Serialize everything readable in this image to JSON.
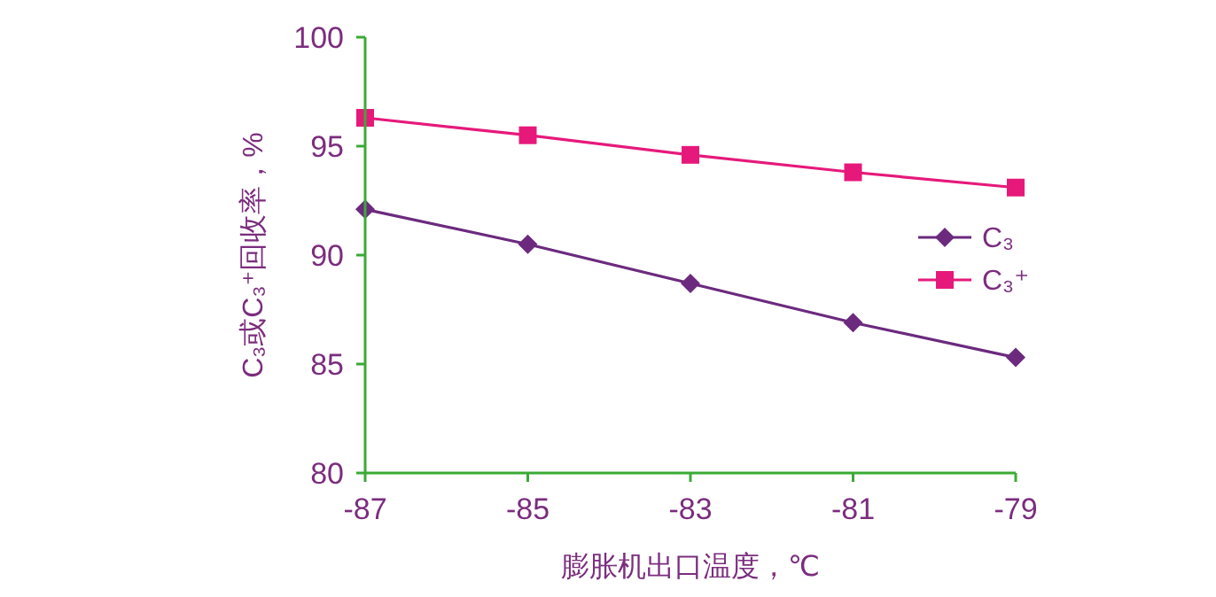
{
  "chart_data": {
    "type": "line",
    "xlabel": "膨胀机出口温度，℃",
    "ylabel": "C₃或C₃⁺回收率，%",
    "x": [
      -87,
      -85,
      -83,
      -81,
      -79
    ],
    "series": [
      {
        "name": "C₃",
        "color": "#6b2a7e",
        "values": [
          92.1,
          90.5,
          88.7,
          86.9,
          85.3
        ],
        "marker": "diamond"
      },
      {
        "name": "C₃⁺",
        "color": "#e6197b",
        "values": [
          96.3,
          95.5,
          94.6,
          93.8,
          93.1
        ],
        "marker": "square"
      }
    ],
    "xlim": [
      -87,
      -79
    ],
    "xticks": [
      -87,
      -85,
      -83,
      -81,
      -79
    ],
    "ylim": [
      80,
      100
    ],
    "yticks": [
      80,
      85,
      90,
      95,
      100
    ],
    "grid": false,
    "legend": "right",
    "line_style": "solid"
  }
}
